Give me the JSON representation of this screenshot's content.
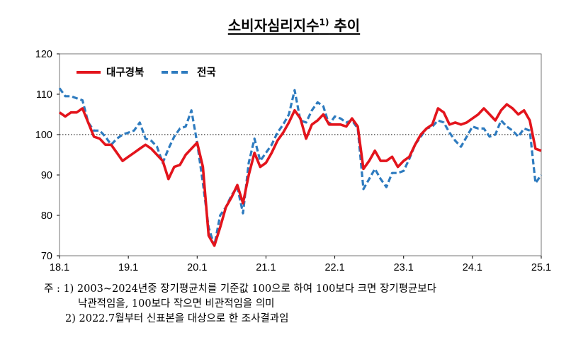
{
  "chart_data": {
    "type": "line",
    "title": "소비자심리지수",
    "title_sup": "1)",
    "title_suffix": " 추이",
    "ylim": [
      70,
      120
    ],
    "yticks": [
      70,
      80,
      90,
      100,
      110,
      120
    ],
    "xlim": [
      0,
      84
    ],
    "xticks": [
      {
        "label": "18.1",
        "x": 0
      },
      {
        "label": "19.1",
        "x": 12
      },
      {
        "label": "20.1",
        "x": 24
      },
      {
        "label": "21.1",
        "x": 36
      },
      {
        "label": "22.1",
        "x": 48
      },
      {
        "label": "23.1",
        "x": 60
      },
      {
        "label": "24.1",
        "x": 72
      },
      {
        "label": "25.1",
        "x": 84
      }
    ],
    "reference_line": 100,
    "legend_position": "top-left",
    "series": [
      {
        "name": "대구경북",
        "color": "#e3141c",
        "style": "solid",
        "x": [
          0,
          1,
          2,
          3,
          4,
          5,
          6,
          7,
          8,
          9,
          10,
          11,
          12,
          13,
          14,
          15,
          16,
          17,
          18,
          19,
          20,
          21,
          22,
          23,
          24,
          25,
          26,
          27,
          28,
          29,
          30,
          31,
          32,
          33,
          34,
          35,
          36,
          37,
          38,
          39,
          40,
          41,
          42,
          43,
          44,
          45,
          46,
          47,
          48,
          49,
          50,
          51,
          52,
          53,
          54,
          55,
          56,
          57,
          58,
          59,
          60,
          61,
          62,
          63,
          64,
          65,
          66,
          67,
          68,
          69,
          70,
          71,
          72,
          73,
          74,
          75,
          76,
          77,
          78,
          79,
          80,
          81,
          82,
          83,
          84
        ],
        "values": [
          105.5,
          104.5,
          105.5,
          105.5,
          106.5,
          103,
          99.5,
          99,
          97.5,
          97.5,
          95.5,
          93.5,
          94.5,
          95.5,
          96.5,
          97.5,
          96.5,
          95,
          93.5,
          89,
          92,
          92.5,
          95,
          96.5,
          98,
          92,
          75,
          72.5,
          77,
          82,
          84.5,
          87.5,
          83,
          90,
          95.5,
          92,
          93,
          95.5,
          98.5,
          100.5,
          103,
          106,
          104,
          99,
          102.5,
          103.5,
          105,
          102.5,
          102.5,
          102.5,
          102,
          104,
          102,
          91.5,
          93.5,
          96,
          93.5,
          93.5,
          94.5,
          92,
          93.5,
          94.5,
          97.5,
          100,
          101.5,
          102.5,
          106.5,
          105.5,
          102.5,
          103,
          102.5,
          103,
          104,
          105,
          106.5,
          105,
          103.5,
          106,
          107.5,
          106.5,
          105,
          106,
          103.5,
          96.5,
          96
        ]
      },
      {
        "name": "전국",
        "color": "#2e7bbf",
        "style": "dashed",
        "x": [
          0,
          1,
          2,
          3,
          4,
          5,
          6,
          7,
          8,
          9,
          10,
          11,
          12,
          13,
          14,
          15,
          16,
          17,
          18,
          19,
          20,
          21,
          22,
          23,
          24,
          25,
          26,
          27,
          28,
          29,
          30,
          31,
          32,
          33,
          34,
          35,
          36,
          37,
          38,
          39,
          40,
          41,
          42,
          43,
          44,
          45,
          46,
          47,
          48,
          49,
          50,
          51,
          52,
          53,
          54,
          55,
          56,
          57,
          58,
          59,
          60,
          61,
          62,
          63,
          64,
          65,
          66,
          67,
          68,
          69,
          70,
          71,
          72,
          73,
          74,
          75,
          76,
          77,
          78,
          79,
          80,
          81,
          82,
          83,
          84
        ],
        "values": [
          111.5,
          109.5,
          109.5,
          109,
          108.5,
          103,
          101,
          101,
          99.5,
          97.5,
          99,
          100,
          100.5,
          101,
          103,
          99,
          98.5,
          97,
          93,
          96.5,
          99.5,
          101.5,
          102,
          106,
          98,
          88,
          77,
          72.5,
          80,
          82,
          85,
          87,
          80.5,
          93,
          99,
          93.5,
          95.5,
          97.5,
          100.5,
          102.5,
          105,
          111,
          103.5,
          103,
          106,
          108,
          107,
          102.5,
          104.5,
          104,
          103,
          103.5,
          101.5,
          86.5,
          89,
          91.5,
          89,
          87,
          90.5,
          90.5,
          91,
          94,
          97.5,
          99.5,
          101.5,
          102,
          103.5,
          103,
          100.5,
          98.5,
          97,
          99.5,
          102,
          101.5,
          101.5,
          99.5,
          100,
          103.5,
          102,
          101,
          99.5,
          101.5,
          101,
          88,
          90
        ]
      }
    ]
  },
  "notes": {
    "prefix": "주 : 1)",
    "note1_line1": " 2003~2024년중 장기평균치를 기준값 100으로 하여 100보다 크면 장기평균보다",
    "note1_line2": "낙관적임을, 100보다 작으면 비관적임을 의미",
    "note2": "2) 2022.7월부터 신표본을 대상으로 한 조사결과임"
  }
}
